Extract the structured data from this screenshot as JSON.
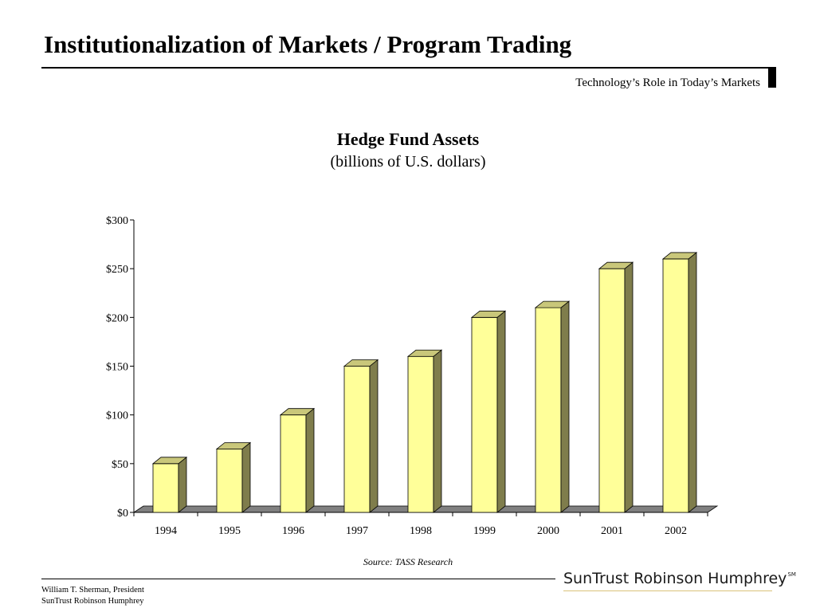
{
  "header": {
    "title": "Institutionalization of Markets / Program Trading",
    "section": "Technology’s Role in Today’s Markets"
  },
  "chart_data": {
    "type": "bar",
    "title": "Hedge Fund Assets",
    "subtitle": "(billions of U.S. dollars)",
    "categories": [
      "1994",
      "1995",
      "1996",
      "1997",
      "1998",
      "1999",
      "2000",
      "2001",
      "2002"
    ],
    "values": [
      50,
      65,
      100,
      150,
      160,
      200,
      210,
      250,
      260
    ],
    "ylim": [
      0,
      300
    ],
    "yticks": [
      0,
      50,
      100,
      150,
      200,
      250,
      300
    ],
    "ytick_labels": [
      "$0",
      "$50",
      "$100",
      "$150",
      "$200",
      "$250",
      "$300"
    ],
    "grid": false,
    "legend": "none",
    "colors": {
      "bar_front": "#ffff99",
      "bar_top": "#c9c77a",
      "bar_side": "#7f7d4c",
      "floor": "#808080"
    }
  },
  "source": "Source: TASS Research",
  "footer": {
    "author_line1": "William T. Sherman, President",
    "author_line2": "SunTrust Robinson Humphrey",
    "brand": "SunTrust Robinson Humphrey",
    "brand_mark": "SM"
  }
}
